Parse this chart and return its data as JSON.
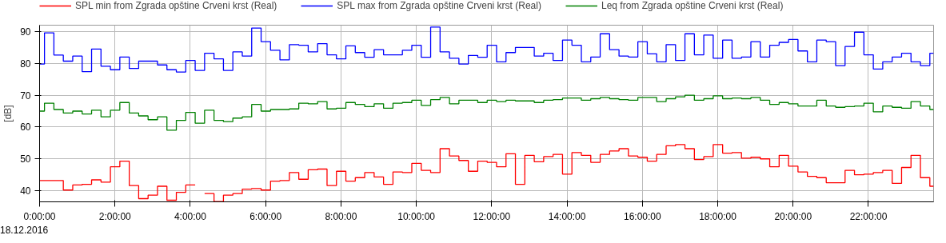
{
  "chart_data": {
    "type": "step",
    "ylabel": "[dB]",
    "annotations": [
      "18.12.2016"
    ],
    "x": [
      0,
      0.13,
      0.38,
      0.63,
      0.88,
      1.13,
      1.38,
      1.63,
      1.88,
      2.13,
      2.38,
      2.63,
      2.88,
      3.13,
      3.38,
      3.63,
      3.88,
      4.13,
      4.38,
      4.63,
      4.88,
      5.13,
      5.38,
      5.63,
      5.88,
      6.13,
      6.38,
      6.63,
      6.88,
      7.13,
      7.38,
      7.63,
      7.88,
      8.13,
      8.38,
      8.63,
      8.88,
      9.13,
      9.38,
      9.63,
      9.88,
      10.13,
      10.38,
      10.63,
      10.88,
      11.13,
      11.38,
      11.63,
      11.88,
      12.13,
      12.38,
      12.63,
      12.88,
      13.13,
      13.38,
      13.63,
      13.88,
      14.13,
      14.38,
      14.63,
      14.88,
      15.13,
      15.38,
      15.63,
      15.88,
      16.13,
      16.38,
      16.63,
      16.88,
      17.13,
      17.38,
      17.63,
      17.88,
      18.13,
      18.38,
      18.63,
      18.88,
      19.13,
      19.38,
      19.63,
      19.88,
      20.13,
      20.38,
      20.63,
      20.88,
      21.13,
      21.38,
      21.63,
      21.88,
      22.13,
      22.38,
      22.63,
      22.88,
      23.13,
      23.38,
      23.63
    ],
    "series": [
      {
        "name": "SPL min from Zgrada opštine Crveni krst (Real)",
        "color": "#ff0000",
        "values": [
          43.2,
          43.2,
          43.2,
          40.2,
          41.8,
          42.0,
          43.4,
          42.7,
          47.5,
          49.3,
          41.6,
          37.5,
          38.6,
          41.4,
          37.0,
          39.5,
          41.8,
          null,
          39.1,
          36.6,
          38.6,
          39.1,
          40.5,
          40.7,
          40.2,
          43.0,
          43.2,
          45.7,
          43.6,
          46.6,
          46.8,
          41.6,
          46.1,
          43.0,
          44.1,
          45.7,
          44.3,
          42.0,
          45.9,
          45.7,
          48.6,
          46.4,
          45.7,
          53.2,
          50.9,
          49.5,
          46.1,
          49.3,
          48.9,
          47.5,
          51.6,
          42.0,
          51.1,
          49.1,
          50.7,
          51.4,
          45.2,
          52.0,
          51.1,
          48.9,
          51.4,
          52.5,
          53.2,
          50.9,
          50.5,
          49.3,
          51.4,
          54.1,
          54.5,
          53.2,
          49.8,
          50.7,
          54.5,
          51.8,
          52.0,
          50.2,
          50.5,
          50.0,
          47.5,
          51.1,
          47.7,
          45.9,
          44.5,
          44.1,
          42.5,
          42.5,
          46.4,
          45.0,
          45.2,
          45.7,
          46.4,
          42.3,
          47.3,
          51.1,
          44.1,
          41.4
        ]
      },
      {
        "name": "SPL max from Zgrada opštine Crveni krst (Real)",
        "color": "#0000ff",
        "values": [
          79.8,
          89.6,
          82.6,
          80.7,
          82.3,
          77.4,
          84.5,
          79.1,
          78.0,
          82.0,
          78.4,
          80.7,
          80.7,
          79.5,
          78.0,
          77.3,
          80.9,
          77.8,
          83.2,
          81.4,
          77.8,
          83.6,
          82.3,
          91.1,
          86.8,
          84.1,
          81.1,
          85.9,
          85.7,
          83.6,
          86.2,
          82.7,
          81.4,
          85.5,
          83.4,
          81.9,
          84.3,
          82.7,
          82.7,
          84.1,
          85.7,
          81.9,
          91.4,
          83.6,
          81.6,
          79.8,
          82.5,
          81.9,
          85.7,
          80.5,
          83.4,
          85.0,
          85.0,
          82.3,
          83.2,
          80.9,
          87.3,
          85.7,
          80.5,
          82.0,
          89.3,
          84.3,
          82.3,
          82.0,
          86.8,
          83.0,
          80.5,
          85.9,
          80.9,
          89.3,
          82.7,
          88.9,
          81.6,
          87.3,
          81.6,
          82.0,
          86.8,
          82.0,
          85.7,
          86.6,
          87.5,
          83.9,
          80.5,
          87.3,
          86.8,
          79.3,
          85.3,
          89.8,
          82.7,
          78.2,
          80.5,
          82.0,
          83.2,
          80.5,
          79.3,
          83.2
        ]
      },
      {
        "name": "Leq from Zgrada opštine Crveni krst (Real)",
        "color": "#008000",
        "values": [
          65.0,
          67.5,
          65.5,
          64.4,
          65.0,
          64.1,
          65.3,
          63.2,
          65.3,
          67.7,
          64.4,
          63.5,
          62.3,
          63.2,
          59.0,
          62.1,
          64.6,
          61.2,
          65.3,
          62.1,
          61.7,
          62.8,
          63.2,
          67.1,
          65.0,
          65.5,
          65.5,
          65.7,
          67.5,
          67.3,
          68.0,
          65.7,
          65.9,
          67.7,
          67.1,
          66.4,
          67.3,
          65.9,
          67.5,
          67.7,
          68.4,
          66.8,
          68.6,
          69.3,
          67.3,
          68.4,
          68.4,
          67.7,
          68.4,
          68.0,
          68.4,
          68.2,
          68.2,
          67.7,
          68.4,
          68.6,
          69.1,
          69.1,
          68.4,
          68.9,
          69.3,
          68.9,
          68.6,
          68.4,
          69.3,
          69.3,
          68.0,
          68.9,
          69.5,
          70.0,
          68.4,
          68.9,
          69.8,
          68.9,
          69.1,
          68.9,
          69.3,
          68.4,
          67.1,
          67.7,
          67.3,
          66.6,
          66.6,
          68.4,
          66.6,
          66.2,
          66.4,
          66.6,
          67.5,
          64.8,
          66.6,
          66.2,
          65.9,
          68.0,
          66.6,
          65.5
        ]
      }
    ],
    "xlim": [
      0,
      23.73
    ],
    "ylim": [
      36.5,
      92
    ],
    "xticks": [
      {
        "value": 0,
        "label": "0:00:00"
      },
      {
        "value": 2,
        "label": "2:00:00"
      },
      {
        "value": 4,
        "label": "4:00:00"
      },
      {
        "value": 6,
        "label": "6:00:00"
      },
      {
        "value": 8,
        "label": "8:00:00"
      },
      {
        "value": 10,
        "label": "10:00:00"
      },
      {
        "value": 12,
        "label": "12:00:00"
      },
      {
        "value": 14,
        "label": "14:00:00"
      },
      {
        "value": 16,
        "label": "16:00:00"
      },
      {
        "value": 18,
        "label": "18:00:00"
      },
      {
        "value": 20,
        "label": "20:00:00"
      },
      {
        "value": 22,
        "label": "22:00:00"
      }
    ],
    "yticks": [
      40,
      50,
      60,
      70,
      80,
      90
    ],
    "grid": true,
    "legend": "top left",
    "line_style": "solid",
    "marker": "none"
  }
}
